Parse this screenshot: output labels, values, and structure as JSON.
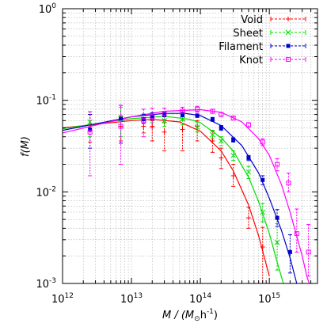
{
  "chart_data": {
    "type": "line",
    "xlabel": "M / (M",
    "xlabel_sub": "⊙",
    "xlabel_tail": "h",
    "xlabel_exp": "-1",
    "xlabel_close": ")",
    "ylabel": "f(M)",
    "xscale": "log",
    "yscale": "log",
    "xlim": [
      1000000000000.0,
      5000000000000000.0
    ],
    "ylim": [
      0.001,
      1
    ],
    "grid": true,
    "legend_position": "top-right",
    "x_ticks": [
      {
        "base": "10",
        "exp": "12",
        "value": 1000000000000.0
      },
      {
        "base": "10",
        "exp": "13",
        "value": 10000000000000.0
      },
      {
        "base": "10",
        "exp": "14",
        "value": 100000000000000.0
      },
      {
        "base": "10",
        "exp": "15",
        "value": 1000000000000000.0
      }
    ],
    "y_ticks": [
      {
        "base": "10",
        "exp": "0",
        "value": 1
      },
      {
        "base": "10",
        "exp": "-1",
        "value": 0.1
      },
      {
        "base": "10",
        "exp": "-2",
        "value": 0.01
      },
      {
        "base": "10",
        "exp": "-3",
        "value": 0.001
      }
    ],
    "series": [
      {
        "name": "Void",
        "color": "#ff0000",
        "marker": "plus",
        "points": [
          {
            "x": 2500000000000.0,
            "y": 0.053,
            "lo": 0.035,
            "hi": 0.07
          },
          {
            "x": 7000000000000.0,
            "y": 0.052,
            "lo": 0.036,
            "hi": 0.068
          },
          {
            "x": 15000000000000.0,
            "y": 0.052,
            "lo": 0.044,
            "hi": 0.061
          },
          {
            "x": 20000000000000.0,
            "y": 0.052,
            "lo": 0.036,
            "hi": 0.06
          },
          {
            "x": 30000000000000.0,
            "y": 0.045,
            "lo": 0.028,
            "hi": 0.057
          },
          {
            "x": 55000000000000.0,
            "y": 0.048,
            "lo": 0.028,
            "hi": 0.061
          },
          {
            "x": 90000000000000.0,
            "y": 0.052,
            "lo": 0.036,
            "hi": 0.06
          },
          {
            "x": 150000000000000.0,
            "y": 0.036,
            "lo": 0.027,
            "hi": 0.046
          },
          {
            "x": 200000000000000.0,
            "y": 0.0235,
            "lo": 0.018,
            "hi": 0.03
          },
          {
            "x": 300000000000000.0,
            "y": 0.015,
            "lo": 0.0115,
            "hi": 0.02
          },
          {
            "x": 500000000000000.0,
            "y": 0.0052,
            "lo": 0.004,
            "hi": 0.0068
          },
          {
            "x": 800000000000000.0,
            "y": 0.0025,
            "lo": 0.001,
            "hi": 0.0041
          }
        ],
        "fit": [
          {
            "x": 1000000000000.0,
            "y": 0.05
          },
          {
            "x": 10000000000000.0,
            "y": 0.06
          },
          {
            "x": 20000000000000.0,
            "y": 0.062
          },
          {
            "x": 50000000000000.0,
            "y": 0.058
          },
          {
            "x": 100000000000000.0,
            "y": 0.046
          },
          {
            "x": 200000000000000.0,
            "y": 0.028
          },
          {
            "x": 300000000000000.0,
            "y": 0.017
          },
          {
            "x": 500000000000000.0,
            "y": 0.0072
          },
          {
            "x": 700000000000000.0,
            "y": 0.0033
          },
          {
            "x": 1000000000000000.0,
            "y": 0.0012
          }
        ]
      },
      {
        "name": "Sheet",
        "color": "#00dd00",
        "marker": "x",
        "points": [
          {
            "x": 2500000000000.0,
            "y": 0.058,
            "lo": 0.04,
            "hi": 0.075
          },
          {
            "x": 7000000000000.0,
            "y": 0.063,
            "lo": 0.04,
            "hi": 0.084
          },
          {
            "x": 15000000000000.0,
            "y": 0.062,
            "lo": 0.052,
            "hi": 0.071
          },
          {
            "x": 20000000000000.0,
            "y": 0.065,
            "lo": 0.057,
            "hi": 0.072
          },
          {
            "x": 30000000000000.0,
            "y": 0.06,
            "lo": 0.052,
            "hi": 0.068
          },
          {
            "x": 55000000000000.0,
            "y": 0.062,
            "lo": 0.054,
            "hi": 0.07
          },
          {
            "x": 90000000000000.0,
            "y": 0.051,
            "lo": 0.045,
            "hi": 0.058
          },
          {
            "x": 150000000000000.0,
            "y": 0.042,
            "lo": 0.038,
            "hi": 0.047
          },
          {
            "x": 200000000000000.0,
            "y": 0.036,
            "lo": 0.032,
            "hi": 0.04
          },
          {
            "x": 300000000000000.0,
            "y": 0.025,
            "lo": 0.022,
            "hi": 0.028
          },
          {
            "x": 500000000000000.0,
            "y": 0.0165,
            "lo": 0.014,
            "hi": 0.019
          },
          {
            "x": 800000000000000.0,
            "y": 0.006,
            "lo": 0.0047,
            "hi": 0.0075
          },
          {
            "x": 1300000000000000.0,
            "y": 0.0028,
            "lo": 0.0014,
            "hi": 0.0045
          }
        ],
        "fit": [
          {
            "x": 1000000000000.0,
            "y": 0.049
          },
          {
            "x": 10000000000000.0,
            "y": 0.063
          },
          {
            "x": 30000000000000.0,
            "y": 0.067
          },
          {
            "x": 70000000000000.0,
            "y": 0.062
          },
          {
            "x": 100000000000000.0,
            "y": 0.057
          },
          {
            "x": 200000000000000.0,
            "y": 0.039
          },
          {
            "x": 300000000000000.0,
            "y": 0.028
          },
          {
            "x": 500000000000000.0,
            "y": 0.0145
          },
          {
            "x": 700000000000000.0,
            "y": 0.0078
          },
          {
            "x": 1000000000000000.0,
            "y": 0.0035
          },
          {
            "x": 1300000000000000.0,
            "y": 0.0017
          },
          {
            "x": 1600000000000000.0,
            "y": 0.001
          }
        ]
      },
      {
        "name": "Filament",
        "color": "#0000cc",
        "marker": "square-filled",
        "points": [
          {
            "x": 2500000000000.0,
            "y": 0.048,
            "lo": 0.03,
            "hi": 0.07
          },
          {
            "x": 7000000000000.0,
            "y": 0.063,
            "lo": 0.034,
            "hi": 0.088
          },
          {
            "x": 15000000000000.0,
            "y": 0.062,
            "lo": 0.056,
            "hi": 0.07
          },
          {
            "x": 20000000000000.0,
            "y": 0.067,
            "lo": 0.061,
            "hi": 0.073
          },
          {
            "x": 30000000000000.0,
            "y": 0.07,
            "lo": 0.066,
            "hi": 0.075
          },
          {
            "x": 55000000000000.0,
            "y": 0.07,
            "lo": 0.066,
            "hi": 0.074
          },
          {
            "x": 90000000000000.0,
            "y": 0.068,
            "lo": 0.065,
            "hi": 0.071
          },
          {
            "x": 150000000000000.0,
            "y": 0.062,
            "lo": 0.059,
            "hi": 0.065
          },
          {
            "x": 200000000000000.0,
            "y": 0.05,
            "lo": 0.047,
            "hi": 0.053
          },
          {
            "x": 300000000000000.0,
            "y": 0.037,
            "lo": 0.035,
            "hi": 0.039
          },
          {
            "x": 500000000000000.0,
            "y": 0.0235,
            "lo": 0.022,
            "hi": 0.025
          },
          {
            "x": 800000000000000.0,
            "y": 0.0135,
            "lo": 0.012,
            "hi": 0.015
          },
          {
            "x": 1300000000000000.0,
            "y": 0.0052,
            "lo": 0.0042,
            "hi": 0.0064
          },
          {
            "x": 2000000000000000.0,
            "y": 0.0022,
            "lo": 0.0013,
            "hi": 0.0034
          }
        ],
        "fit": [
          {
            "x": 1000000000000.0,
            "y": 0.047
          },
          {
            "x": 10000000000000.0,
            "y": 0.066
          },
          {
            "x": 30000000000000.0,
            "y": 0.072
          },
          {
            "x": 60000000000000.0,
            "y": 0.072
          },
          {
            "x": 100000000000000.0,
            "y": 0.068
          },
          {
            "x": 200000000000000.0,
            "y": 0.053
          },
          {
            "x": 400000000000000.0,
            "y": 0.032
          },
          {
            "x": 700000000000000.0,
            "y": 0.016
          },
          {
            "x": 1000000000000000.0,
            "y": 0.0085
          },
          {
            "x": 1500000000000000.0,
            "y": 0.0038
          },
          {
            "x": 2000000000000000.0,
            "y": 0.0019
          },
          {
            "x": 2500000000000000.0,
            "y": 0.001
          }
        ]
      },
      {
        "name": "Knot",
        "color": "#ff00ff",
        "marker": "square-open",
        "points": [
          {
            "x": 2500000000000.0,
            "y": 0.045,
            "lo": 0.015,
            "hi": 0.075
          },
          {
            "x": 7000000000000.0,
            "y": 0.052,
            "lo": 0.02,
            "hi": 0.088
          },
          {
            "x": 15000000000000.0,
            "y": 0.06,
            "lo": 0.04,
            "hi": 0.08
          },
          {
            "x": 20000000000000.0,
            "y": 0.066,
            "lo": 0.05,
            "hi": 0.082
          },
          {
            "x": 30000000000000.0,
            "y": 0.072,
            "lo": 0.062,
            "hi": 0.082
          },
          {
            "x": 55000000000000.0,
            "y": 0.076,
            "lo": 0.068,
            "hi": 0.084
          },
          {
            "x": 90000000000000.0,
            "y": 0.08,
            "lo": 0.074,
            "hi": 0.086
          },
          {
            "x": 150000000000000.0,
            "y": 0.076,
            "lo": 0.072,
            "hi": 0.08
          },
          {
            "x": 200000000000000.0,
            "y": 0.07,
            "lo": 0.067,
            "hi": 0.074
          },
          {
            "x": 300000000000000.0,
            "y": 0.064,
            "lo": 0.061,
            "hi": 0.067
          },
          {
            "x": 500000000000000.0,
            "y": 0.054,
            "lo": 0.051,
            "hi": 0.057
          },
          {
            "x": 800000000000000.0,
            "y": 0.035,
            "lo": 0.032,
            "hi": 0.038
          },
          {
            "x": 1300000000000000.0,
            "y": 0.02,
            "lo": 0.017,
            "hi": 0.023
          },
          {
            "x": 1900000000000000.0,
            "y": 0.0125,
            "lo": 0.01,
            "hi": 0.016
          },
          {
            "x": 2500000000000000.0,
            "y": 0.0035,
            "lo": 0.0022,
            "hi": 0.0065
          },
          {
            "x": 3700000000000000.0,
            "y": 0.0022,
            "lo": 0.0012,
            "hi": 0.0044
          }
        ],
        "fit": [
          {
            "x": 1000000000000.0,
            "y": 0.044
          },
          {
            "x": 10000000000000.0,
            "y": 0.066
          },
          {
            "x": 30000000000000.0,
            "y": 0.076
          },
          {
            "x": 100000000000000.0,
            "y": 0.079
          },
          {
            "x": 200000000000000.0,
            "y": 0.074
          },
          {
            "x": 400000000000000.0,
            "y": 0.058
          },
          {
            "x": 700000000000000.0,
            "y": 0.038
          },
          {
            "x": 1000000000000000.0,
            "y": 0.025
          },
          {
            "x": 1500000000000000.0,
            "y": 0.012
          },
          {
            "x": 2000000000000000.0,
            "y": 0.006
          },
          {
            "x": 3000000000000000.0,
            "y": 0.002
          },
          {
            "x": 3500000000000000.0,
            "y": 0.0012
          },
          {
            "x": 3800000000000000.0,
            "y": 0.001
          }
        ]
      }
    ]
  }
}
